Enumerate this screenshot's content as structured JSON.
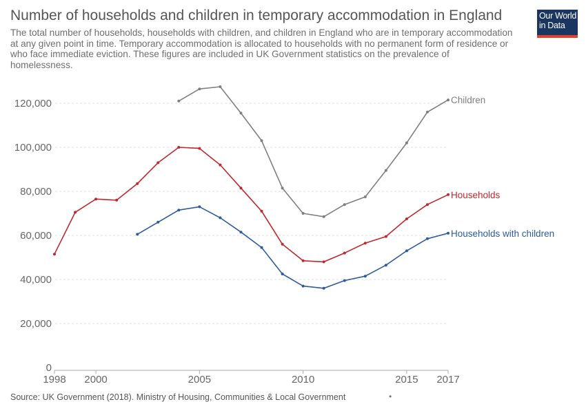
{
  "title": "Number of households and children in temporary accommodation in England",
  "subtitle": "The total number of households, households with children, and children in England who are in temporary accommodation at any given point in time. Temporary accommodation is allocated to households with no permanent form of residence or who face immediate eviction. These figures are included in UK Government statistics on the prevalence of homelessness.",
  "logo": {
    "line1": "Our World",
    "line2": "in Data",
    "bg_color": "#1a3660",
    "accent_color": "#e5402a"
  },
  "source": "Source: UK Government (2018). Ministry of Housing, Communities & Local Government",
  "chart_data": {
    "type": "line",
    "xlim": [
      1998,
      2017
    ],
    "ylim": [
      0,
      120000
    ],
    "x_ticks": [
      1998,
      2000,
      2005,
      2010,
      2015,
      2017
    ],
    "x_tick_labels": [
      "1998",
      "2000",
      "2005",
      "2010",
      "2015",
      "2017"
    ],
    "y_ticks": [
      0,
      20000,
      40000,
      60000,
      80000,
      100000,
      120000
    ],
    "y_tick_labels": [
      "0",
      "20,000",
      "40,000",
      "60,000",
      "80,000",
      "100,000",
      "120,000"
    ],
    "grid": true,
    "legend": "inline-right",
    "series": [
      {
        "name": "Children",
        "color": "#7f7f7f",
        "x": [
          2004,
          2005,
          2006,
          2007,
          2008,
          2009,
          2010,
          2011,
          2012,
          2013,
          2014,
          2015,
          2016,
          2017
        ],
        "values": [
          121000,
          126500,
          127500,
          115500,
          103000,
          81500,
          70000,
          68500,
          74000,
          77500,
          89500,
          102000,
          116000,
          121500
        ]
      },
      {
        "name": "Households",
        "color": "#c0282d",
        "x": [
          1998,
          1999,
          2000,
          2001,
          2002,
          2003,
          2004,
          2005,
          2006,
          2007,
          2008,
          2009,
          2010,
          2011,
          2012,
          2013,
          2014,
          2015,
          2016,
          2017
        ],
        "values": [
          51500,
          70500,
          76500,
          76000,
          83500,
          93000,
          100000,
          99500,
          92000,
          81500,
          71000,
          56000,
          48500,
          48000,
          52000,
          56500,
          59500,
          67500,
          74000,
          78500
        ]
      },
      {
        "name": "Households with children",
        "color": "#2d5b9e",
        "x": [
          2002,
          2003,
          2004,
          2005,
          2006,
          2007,
          2008,
          2009,
          2010,
          2011,
          2012,
          2013,
          2014,
          2015,
          2016,
          2017
        ],
        "values": [
          60500,
          66000,
          71500,
          73000,
          68000,
          61500,
          54500,
          42500,
          37000,
          36000,
          39500,
          41500,
          46500,
          53000,
          58500,
          61000
        ]
      }
    ]
  }
}
